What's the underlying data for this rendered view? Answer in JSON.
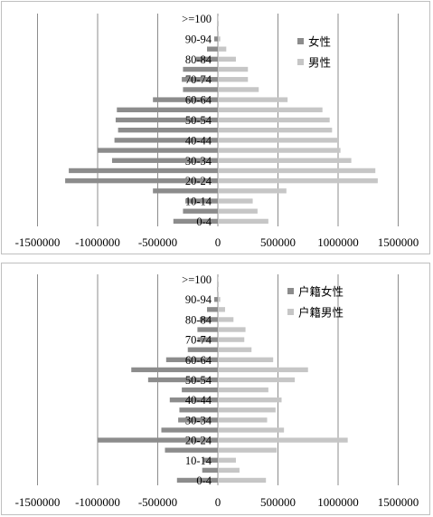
{
  "colors": {
    "female": "#8c8c8c",
    "male": "#c6c6c6",
    "grid": "#8c8c8c"
  },
  "chart_data": [
    {
      "type": "bar",
      "orientation": "horizontal",
      "categories": [
        "0-4",
        "5-9",
        "10-14",
        "15-19",
        "20-24",
        "25-29",
        "30-34",
        "35-39",
        "40-44",
        "45-49",
        "50-54",
        "55-59",
        "60-64",
        "65-69",
        "70-74",
        "75-79",
        "80-84",
        "85-89",
        "90-94",
        "95-99",
        ">=100"
      ],
      "tick_labels_shown": [
        "0-4",
        "10-14",
        "20-24",
        "30-34",
        "40-44",
        "50-54",
        "60-64",
        "70-74",
        "80-84",
        "90-94",
        ">=100"
      ],
      "series": [
        {
          "name": "女性",
          "values": [
            -370000,
            -290000,
            -270000,
            -540000,
            -1270000,
            -1240000,
            -880000,
            -1000000,
            -860000,
            -830000,
            -850000,
            -840000,
            -540000,
            -290000,
            -300000,
            -290000,
            -180000,
            -90000,
            -30000,
            -5000,
            -1000
          ]
        },
        {
          "name": "男性",
          "values": [
            420000,
            330000,
            290000,
            570000,
            1330000,
            1310000,
            1110000,
            1020000,
            1000000,
            950000,
            930000,
            870000,
            580000,
            340000,
            250000,
            250000,
            150000,
            70000,
            20000,
            3000,
            500
          ]
        }
      ],
      "xlim": [
        -1500000,
        1500000
      ],
      "x_ticks": [
        -1500000,
        -1000000,
        -500000,
        0,
        500000,
        1000000,
        1500000
      ],
      "legend_position": "top-right",
      "grid": "vertical"
    },
    {
      "type": "bar",
      "orientation": "horizontal",
      "categories": [
        "0-4",
        "5-9",
        "10-14",
        "15-19",
        "20-24",
        "25-29",
        "30-34",
        "35-39",
        "40-44",
        "45-49",
        "50-54",
        "55-59",
        "60-64",
        "65-69",
        "70-74",
        "75-79",
        "80-84",
        "85-89",
        "90-94",
        "95-99",
        ">=100"
      ],
      "tick_labels_shown": [
        "0-4",
        "10-14",
        "20-24",
        "30-34",
        "40-44",
        "50-54",
        "60-64",
        "70-74",
        "80-84",
        "90-94",
        ">=100"
      ],
      "series": [
        {
          "name": "户籍女性",
          "values": [
            -340000,
            -130000,
            -120000,
            -440000,
            -1000000,
            -470000,
            -330000,
            -320000,
            -400000,
            -300000,
            -580000,
            -720000,
            -430000,
            -250000,
            -170000,
            -170000,
            -150000,
            -90000,
            -30000,
            -5000,
            -1000
          ]
        },
        {
          "name": "户籍男性",
          "values": [
            400000,
            180000,
            150000,
            490000,
            1080000,
            550000,
            410000,
            480000,
            530000,
            420000,
            640000,
            750000,
            460000,
            280000,
            220000,
            230000,
            130000,
            60000,
            20000,
            3000,
            500
          ]
        }
      ],
      "xlim": [
        -1500000,
        1500000
      ],
      "x_ticks": [
        -1500000,
        -1000000,
        -500000,
        0,
        500000,
        1000000,
        1500000
      ],
      "legend_position": "top-right",
      "grid": "vertical"
    }
  ]
}
